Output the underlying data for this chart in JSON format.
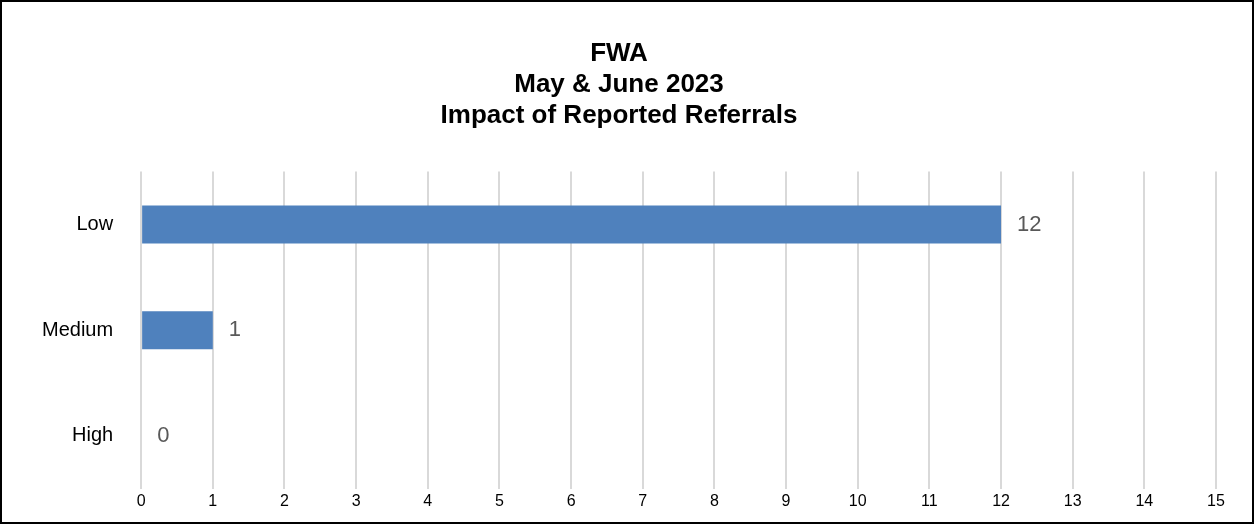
{
  "chart_data": {
    "type": "bar",
    "orientation": "horizontal",
    "title": "FWA\nMay & June 2023\nImpact of Reported Referrals",
    "categories": [
      "Low",
      "Medium",
      "High"
    ],
    "values": [
      12,
      1,
      0
    ],
    "color": "#4f81bd",
    "xlim": [
      0,
      15
    ],
    "xticks": [
      0,
      1,
      2,
      3,
      4,
      5,
      6,
      7,
      8,
      9,
      10,
      11,
      12,
      13,
      14,
      15
    ],
    "grid": "x",
    "data_labels": true,
    "legend": false
  }
}
